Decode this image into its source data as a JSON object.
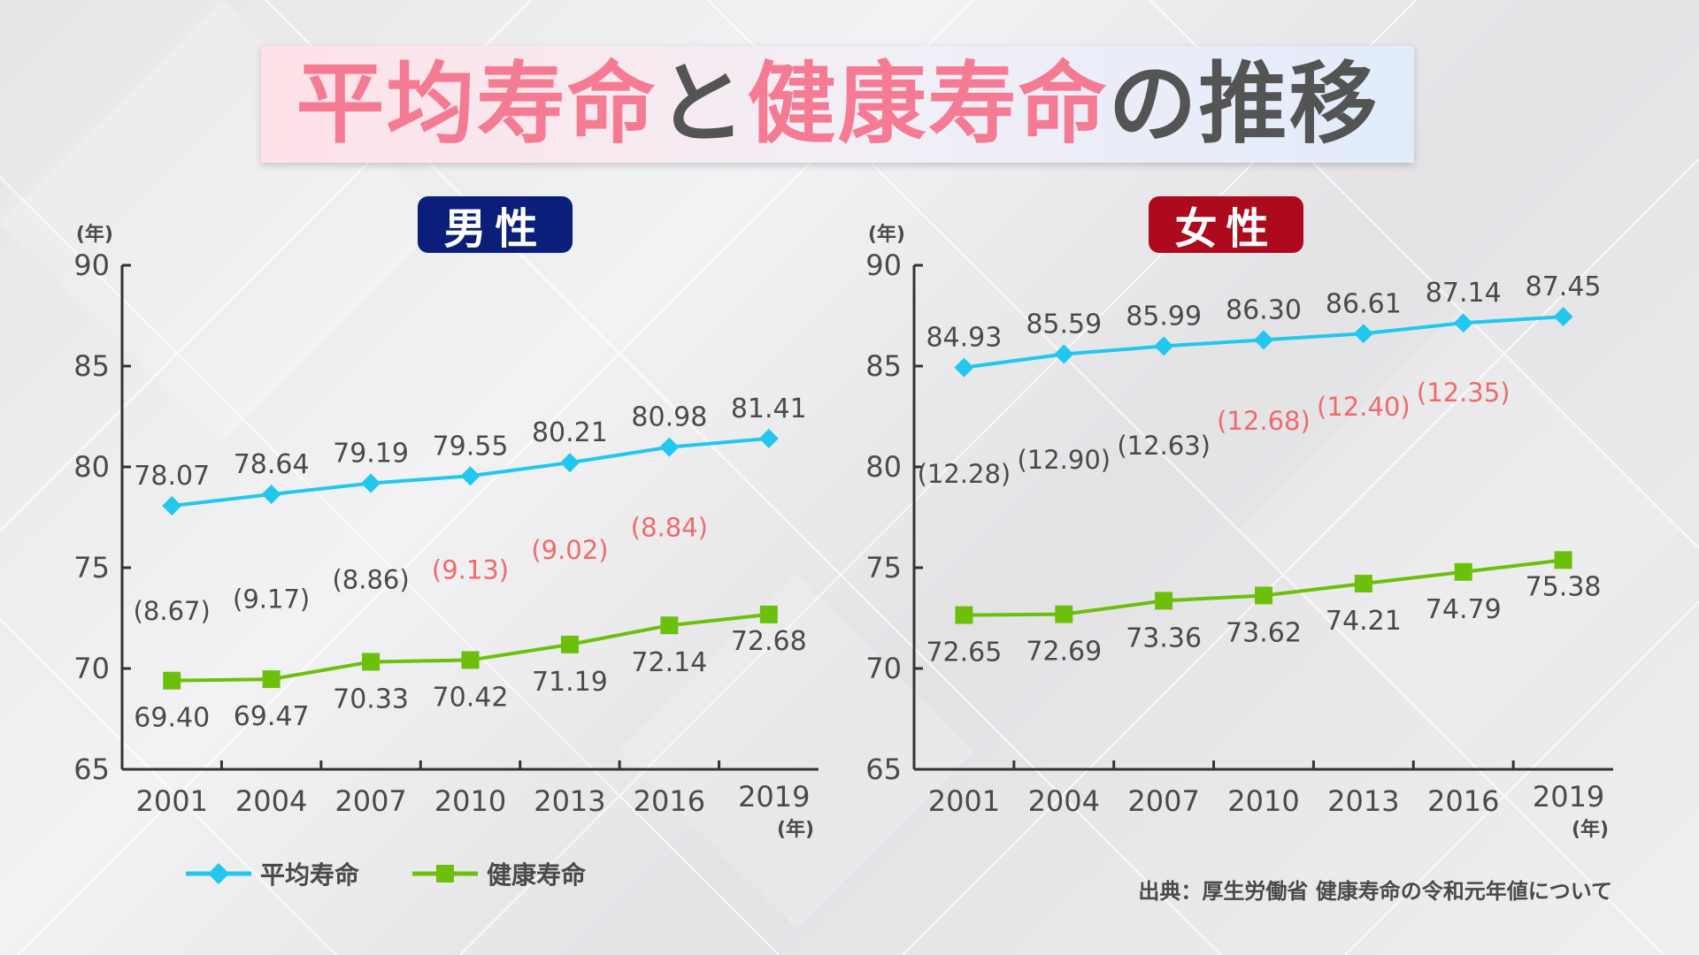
{
  "title": {
    "part1": "平均寿命",
    "part2": "と",
    "part3": "健康寿命",
    "part4": "の推移"
  },
  "legend": {
    "avg_label": "平均寿命",
    "healthy_label": "健康寿命"
  },
  "source": "出典：厚生労働省 健康寿命の令和元年値について",
  "colors": {
    "avg_line": "#22c7ef",
    "healthy_line": "#6cc00c",
    "gap_normal": "#4a4a4a",
    "gap_highlight": "#f06a6a",
    "male_badge": "#0b1f7a",
    "female_badge": "#ad0a1e",
    "axis": "#333333",
    "label": "#4a4a4a"
  },
  "chart_data": [
    {
      "type": "line",
      "badge": "男性",
      "categories": [
        "2001",
        "2004",
        "2007",
        "2010",
        "2013",
        "2016",
        "2019"
      ],
      "x_unit": "(年)",
      "y_unit": "(年)",
      "ylim": [
        65,
        90
      ],
      "yticks": [
        90,
        85,
        80,
        75,
        70,
        65
      ],
      "series": [
        {
          "name": "平均寿命",
          "marker": "diamond",
          "values": [
            78.07,
            78.64,
            79.19,
            79.55,
            80.21,
            80.98,
            81.41
          ],
          "labels": [
            "78.07",
            "78.64",
            "79.19",
            "79.55",
            "80.21",
            "80.98",
            "81.41"
          ]
        },
        {
          "name": "健康寿命",
          "marker": "square",
          "values": [
            69.4,
            69.47,
            70.33,
            70.42,
            71.19,
            72.14,
            72.68
          ],
          "labels": [
            "69.40",
            "69.47",
            "70.33",
            "70.42",
            "71.19",
            "72.14",
            "72.68"
          ]
        }
      ],
      "gaps": [
        "(8.67)",
        "(9.17)",
        "(8.86)",
        "(9.13)",
        "(9.02)",
        "(8.84)",
        ""
      ],
      "gap_highlight": [
        false,
        false,
        false,
        true,
        true,
        true,
        false
      ]
    },
    {
      "type": "line",
      "badge": "女性",
      "categories": [
        "2001",
        "2004",
        "2007",
        "2010",
        "2013",
        "2016",
        "2019"
      ],
      "x_unit": "(年)",
      "y_unit": "(年)",
      "ylim": [
        65,
        90
      ],
      "yticks": [
        90,
        85,
        80,
        75,
        70,
        65
      ],
      "series": [
        {
          "name": "平均寿命",
          "marker": "diamond",
          "values": [
            84.93,
            85.59,
            85.99,
            86.3,
            86.61,
            87.14,
            87.45
          ],
          "labels": [
            "84.93",
            "85.59",
            "85.99",
            "86.30",
            "86.61",
            "87.14",
            "87.45"
          ]
        },
        {
          "name": "健康寿命",
          "marker": "square",
          "values": [
            72.65,
            72.69,
            73.36,
            73.62,
            74.21,
            74.79,
            75.38
          ],
          "labels": [
            "72.65",
            "72.69",
            "73.36",
            "73.62",
            "74.21",
            "74.79",
            "75.38"
          ]
        }
      ],
      "gaps": [
        "(12.28)",
        "(12.90)",
        "(12.63)",
        "(12.68)",
        "(12.40)",
        "(12.35)",
        ""
      ],
      "gap_highlight": [
        false,
        false,
        false,
        true,
        true,
        true,
        false
      ]
    }
  ]
}
